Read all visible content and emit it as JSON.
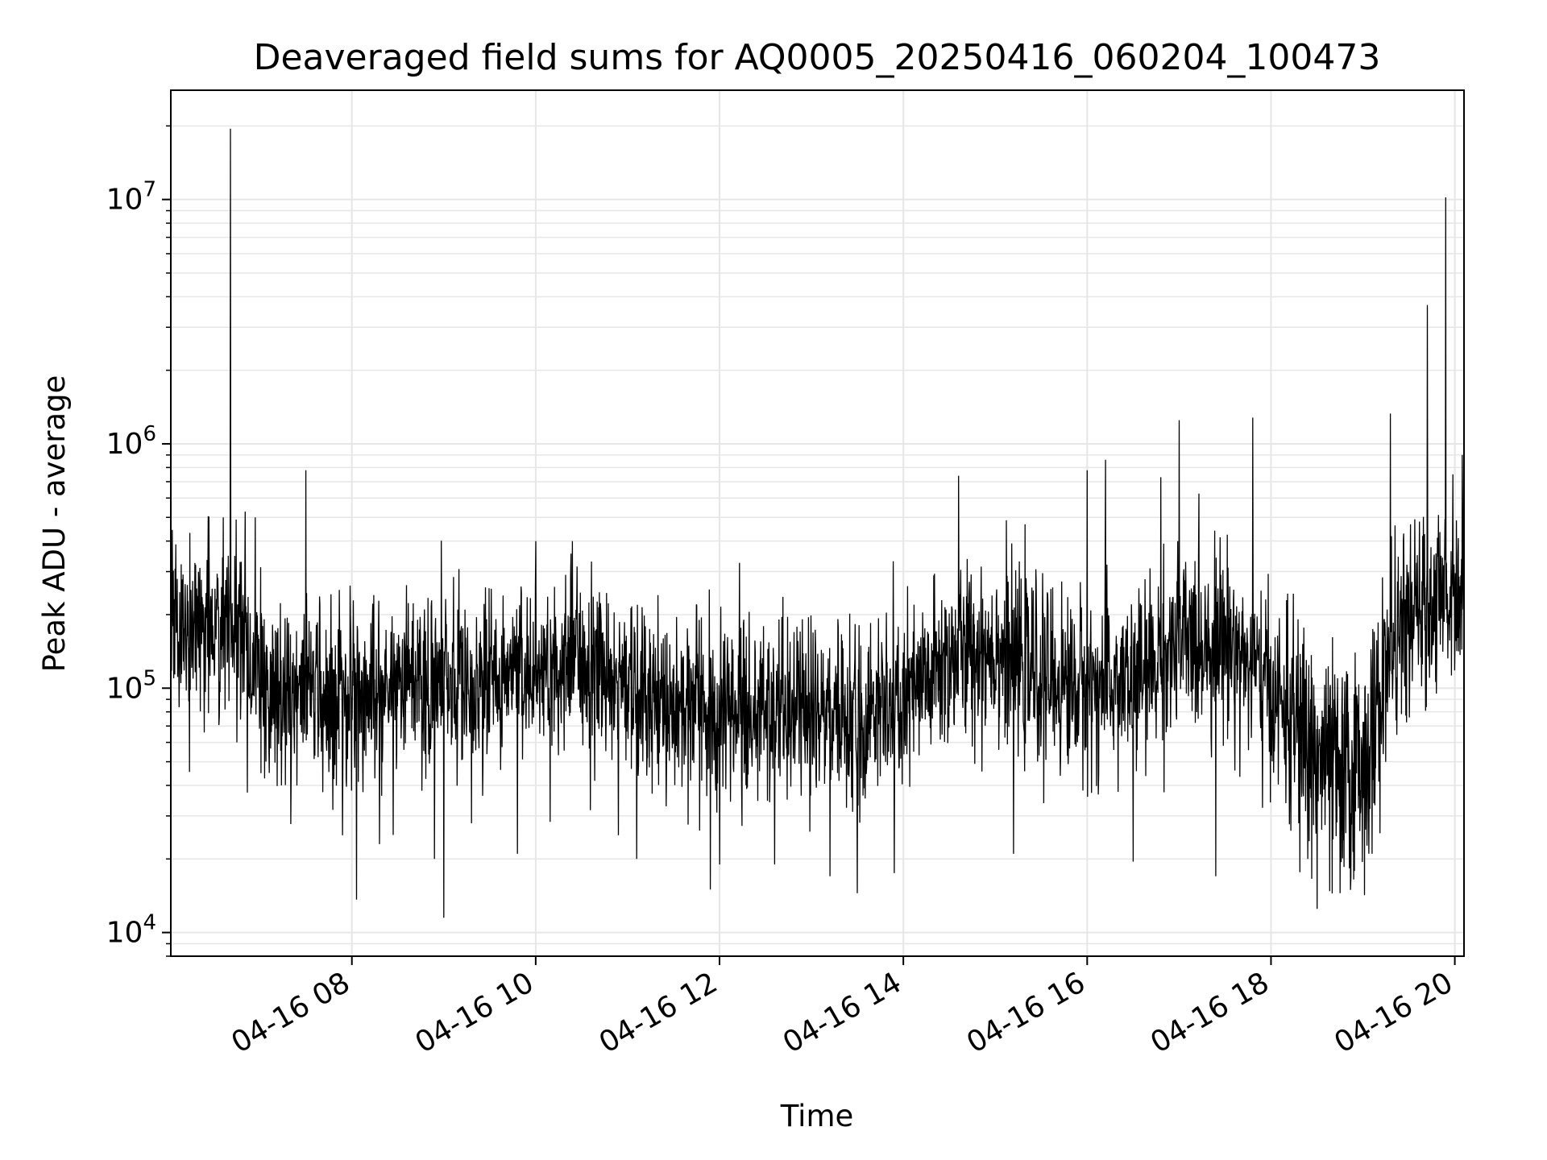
{
  "chart_data": {
    "type": "line",
    "title": "Deaveraged field sums for AQ0005_20250416_060204_100473",
    "xlabel": "Time",
    "ylabel": "Peak ADU - average",
    "yscale": "log",
    "ylim": [
      8000,
      28000000
    ],
    "xlim_hours": [
      6.03,
      20.1
    ],
    "grid": true,
    "grid_color": "#e6e6e6",
    "line_color": "#000000",
    "y_ticks": [
      {
        "value": 10000,
        "base": "10",
        "exp": "4"
      },
      {
        "value": 100000,
        "base": "10",
        "exp": "5"
      },
      {
        "value": 1000000,
        "base": "10",
        "exp": "6"
      },
      {
        "value": 10000000,
        "base": "10",
        "exp": "7"
      }
    ],
    "x_ticks": [
      {
        "hour": 8,
        "label": "04-16 08"
      },
      {
        "hour": 10,
        "label": "04-16 10"
      },
      {
        "hour": 12,
        "label": "04-16 12"
      },
      {
        "hour": 14,
        "label": "04-16 14"
      },
      {
        "hour": 16,
        "label": "04-16 16"
      },
      {
        "hour": 18,
        "label": "04-16 18"
      },
      {
        "hour": 20,
        "label": "04-16 20"
      }
    ],
    "series": [
      {
        "baseline": [
          [
            6.03,
            170000
          ],
          [
            6.5,
            190000
          ],
          [
            6.75,
            175000
          ],
          [
            6.9,
            110000
          ],
          [
            7.3,
            95000
          ],
          [
            7.8,
            95000
          ],
          [
            8.5,
            105000
          ],
          [
            9.0,
            100000
          ],
          [
            10.0,
            120000
          ],
          [
            10.5,
            130000
          ],
          [
            11.0,
            105000
          ],
          [
            11.5,
            85000
          ],
          [
            12.5,
            80000
          ],
          [
            13.5,
            75000
          ],
          [
            14.0,
            85000
          ],
          [
            14.5,
            130000
          ],
          [
            15.0,
            150000
          ],
          [
            15.5,
            110000
          ],
          [
            16.0,
            100000
          ],
          [
            16.5,
            105000
          ],
          [
            17.0,
            150000
          ],
          [
            17.5,
            165000
          ],
          [
            18.0,
            95000
          ],
          [
            18.4,
            60000
          ],
          [
            18.8,
            40000
          ],
          [
            19.1,
            60000
          ],
          [
            19.3,
            150000
          ],
          [
            19.6,
            200000
          ],
          [
            20.1,
            260000
          ]
        ],
        "spikes": [
          [
            6.02,
            100000
          ],
          [
            6.1,
            280000
          ],
          [
            6.3,
            320000
          ],
          [
            6.6,
            500000
          ],
          [
            6.68,
            19500000
          ],
          [
            6.75,
            60000
          ],
          [
            6.95,
            500000
          ],
          [
            7.1,
            45000
          ],
          [
            7.5,
            780000
          ],
          [
            7.9,
            25000
          ],
          [
            8.3,
            23000
          ],
          [
            8.9,
            20000
          ],
          [
            9.0,
            11500
          ],
          [
            9.3,
            28000
          ],
          [
            9.8,
            21000
          ],
          [
            10.0,
            400000
          ],
          [
            10.4,
            400000
          ],
          [
            10.9,
            25000
          ],
          [
            11.1,
            20000
          ],
          [
            11.9,
            15000
          ],
          [
            12.0,
            19000
          ],
          [
            12.6,
            19000
          ],
          [
            13.2,
            17000
          ],
          [
            13.5,
            14500
          ],
          [
            13.9,
            17500
          ],
          [
            14.6,
            740000
          ],
          [
            15.2,
            21000
          ],
          [
            16.0,
            780000
          ],
          [
            16.2,
            860000
          ],
          [
            16.5,
            19500
          ],
          [
            16.8,
            730000
          ],
          [
            17.0,
            1250000
          ],
          [
            17.4,
            17000
          ],
          [
            17.8,
            1280000
          ],
          [
            18.4,
            20000
          ],
          [
            18.5,
            12500
          ],
          [
            18.75,
            14500
          ],
          [
            19.1,
            21000
          ],
          [
            19.3,
            1330000
          ],
          [
            19.7,
            3700000
          ],
          [
            19.8,
            95000
          ],
          [
            19.9,
            10200000
          ],
          [
            19.98,
            750000
          ],
          [
            20.08,
            900000
          ]
        ]
      }
    ]
  }
}
